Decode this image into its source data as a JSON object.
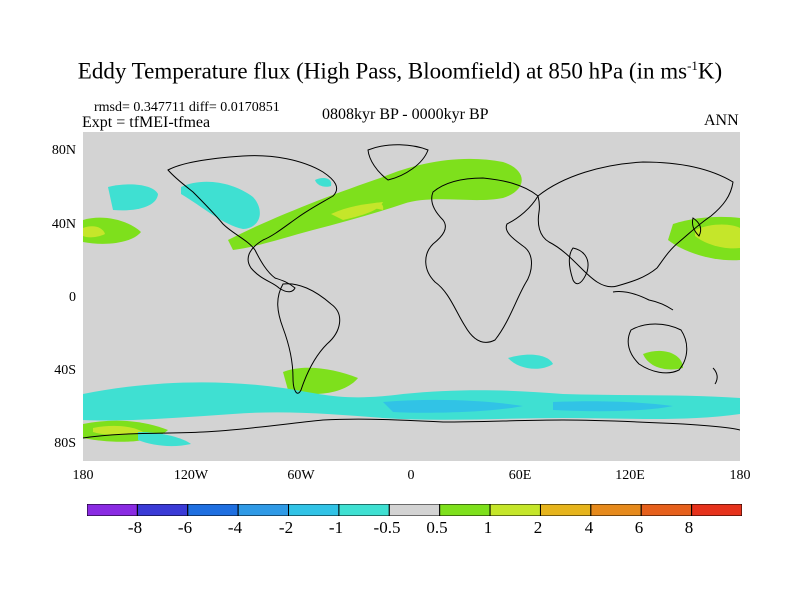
{
  "title": {
    "main": "Eddy Temperature flux (High Pass, Bloomfield) at 850 hPa (in ms",
    "sup": "-1",
    "end": "K)"
  },
  "stats": "rmsd= 0.347711 diff= 0.0170851",
  "experiment": "Expt = tfMEI-tfmea",
  "period": "0808kyr BP - 0000kyr BP",
  "season": "ANN",
  "lat_labels": [
    "80N",
    "40N",
    "0",
    "40S",
    "80S"
  ],
  "lon_labels": [
    "180",
    "120W",
    "60W",
    "0",
    "60E",
    "120E",
    "180"
  ],
  "colorbar": {
    "labels": [
      "-8",
      "-6",
      "-4",
      "-2",
      "-1",
      "-0.5",
      "0.5",
      "1",
      "2",
      "4",
      "6",
      "8"
    ],
    "colors": [
      "#8a2be2",
      "#3a3ad6",
      "#1f6fe0",
      "#2f9ae6",
      "#31c3e6",
      "#3fe0d2",
      "#d3d3d3",
      "#7ee01c",
      "#c5e62a",
      "#e6b41c",
      "#e68a1c",
      "#e6601c",
      "#e6321c"
    ]
  },
  "map": {
    "background": "#d3d3d3",
    "lat_range": [
      -90,
      90
    ],
    "lon_range": [
      -180,
      180
    ]
  }
}
